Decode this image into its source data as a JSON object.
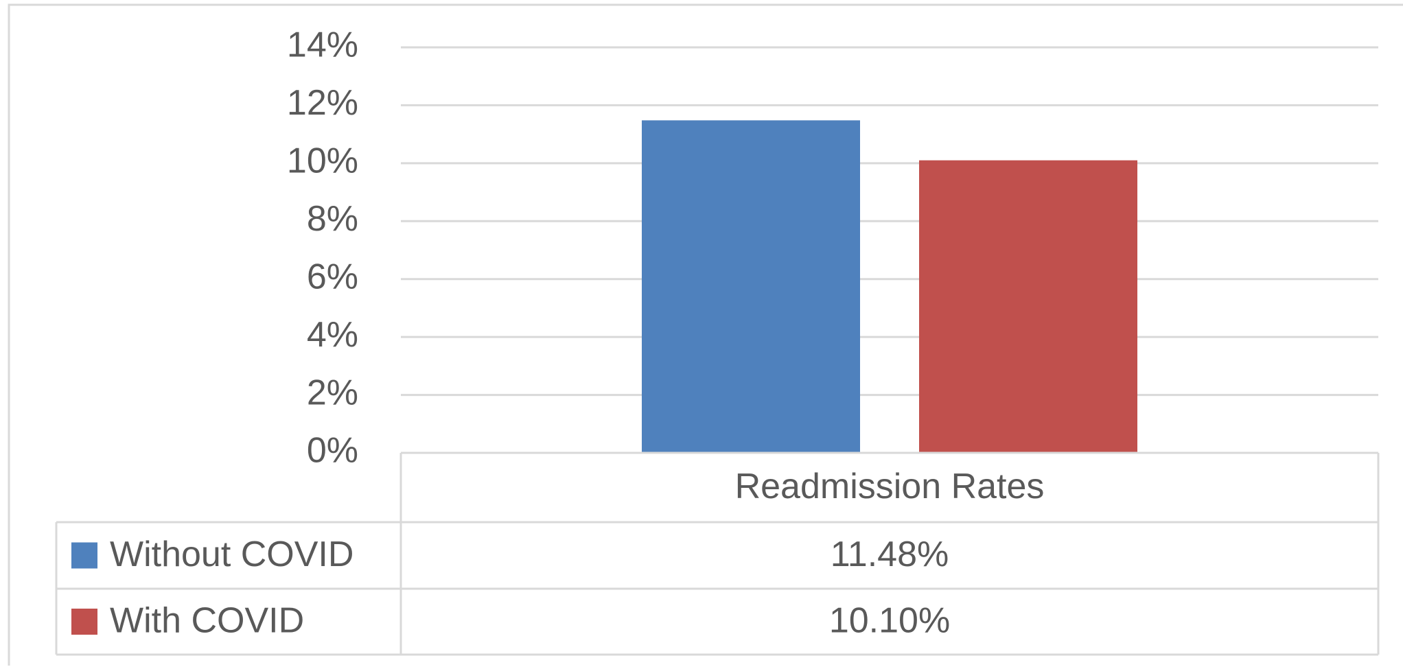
{
  "chart_data": {
    "type": "bar",
    "categories": [
      "Readmission Rates"
    ],
    "series": [
      {
        "name": "Without COVID",
        "color": "#4f81bd",
        "values": [
          11.48
        ],
        "value_labels": [
          "11.48%"
        ]
      },
      {
        "name": "With COVID",
        "color": "#c0504d",
        "values": [
          10.1
        ],
        "value_labels": [
          "10.10%"
        ]
      }
    ],
    "ylim": [
      0,
      14
    ],
    "yticks": [
      {
        "value": 0,
        "label": "0%"
      },
      {
        "value": 2,
        "label": "2%"
      },
      {
        "value": 4,
        "label": "4%"
      },
      {
        "value": 6,
        "label": "6%"
      },
      {
        "value": 8,
        "label": "8%"
      },
      {
        "value": 10,
        "label": "10%"
      },
      {
        "value": 12,
        "label": "12%"
      },
      {
        "value": 14,
        "label": "14%"
      }
    ],
    "grid": true
  }
}
